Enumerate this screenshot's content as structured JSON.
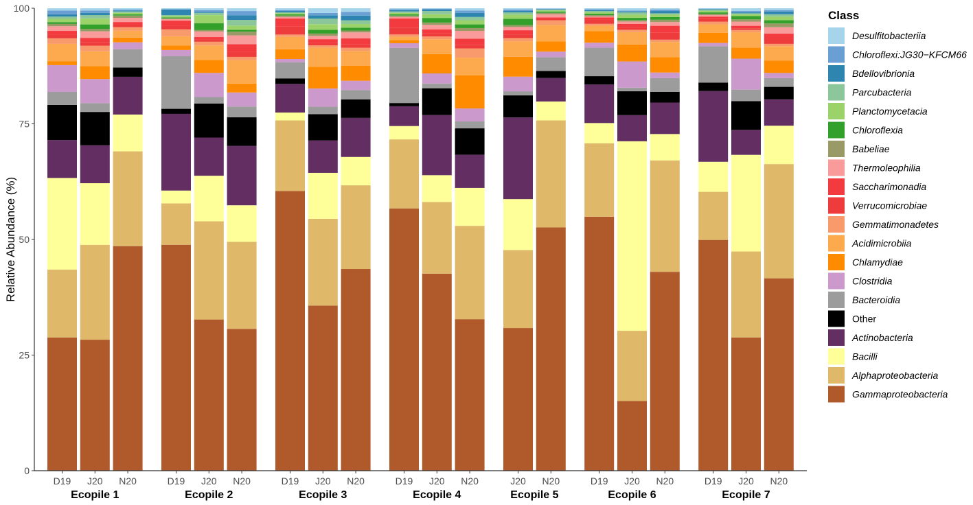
{
  "chart_data": {
    "type": "bar",
    "stacked": true,
    "ylabel": "Relative Abundance (%)",
    "ylim": [
      0,
      100
    ],
    "yticks": [
      0,
      25,
      50,
      75,
      100
    ],
    "legend_title": "Class",
    "classes": [
      {
        "name": "Gammaproteobacteria",
        "color": "#b05a2b",
        "italic": true
      },
      {
        "name": "Alphaproteobacteria",
        "color": "#dfb86a",
        "italic": true
      },
      {
        "name": "Bacilli",
        "color": "#ffff99",
        "italic": true
      },
      {
        "name": "Actinobacteria",
        "color": "#632f63",
        "italic": true
      },
      {
        "name": "Other",
        "color": "#000000",
        "italic": false
      },
      {
        "name": "Bacteroidia",
        "color": "#9c9c9c",
        "italic": true
      },
      {
        "name": "Clostridia",
        "color": "#cc99cc",
        "italic": true
      },
      {
        "name": "Chlamydiae",
        "color": "#ff8c00",
        "italic": true
      },
      {
        "name": "Acidimicrobiia",
        "color": "#fda94e",
        "italic": true
      },
      {
        "name": "Gemmatimonadetes",
        "color": "#f99a6c",
        "italic": true
      },
      {
        "name": "Verrucomicrobiae",
        "color": "#ee3b3b",
        "italic": true
      },
      {
        "name": "Saccharimonadia",
        "color": "#f33a3e",
        "italic": true
      },
      {
        "name": "Thermoleophilia",
        "color": "#fa9b9b",
        "italic": true
      },
      {
        "name": "Babeliae",
        "color": "#9a9a66",
        "italic": true
      },
      {
        "name": "Chloroflexia",
        "color": "#33a02c",
        "italic": true
      },
      {
        "name": "Planctomycetacia",
        "color": "#9bd36a",
        "italic": true
      },
      {
        "name": "Parcubacteria",
        "color": "#8cc69b",
        "italic": true
      },
      {
        "name": "Bdellovibrionia",
        "color": "#2e86b0",
        "italic": true
      },
      {
        "name": "Chloroflexi:JG30−KFCM66",
        "color": "#6a9fd3",
        "italic": true
      },
      {
        "name": "Desulfitobacteriia",
        "color": "#a6d4ea",
        "italic": true
      }
    ],
    "groups": [
      {
        "name": "Ecopile 1",
        "samples": [
          {
            "label": "D19",
            "values": [
              28.8,
              14.7,
              19.8,
              8.2,
              7.6,
              2.8,
              5.8,
              0.8,
              3.8,
              1.2,
              0.8,
              0.8,
              1.0,
              0.5,
              0.4,
              0.7,
              0.5,
              0.5,
              0.8,
              0.5
            ]
          },
          {
            "label": "J20",
            "values": [
              28.3,
              20.5,
              13.3,
              8.2,
              7.2,
              1.9,
              5.2,
              2.8,
              3.2,
              1.2,
              0.8,
              0.9,
              1.4,
              0.5,
              1.0,
              1.3,
              0.7,
              0.5,
              0.5,
              0.5
            ]
          },
          {
            "label": "N20",
            "values": [
              48.8,
              20.6,
              8.0,
              8.2,
              2.0,
              4.0,
              1.5,
              1.0,
              1.5,
              0.8,
              0.6,
              0.5,
              0.9,
              0.5,
              0.3,
              0.3,
              0.3,
              0.2,
              0.2,
              0.3
            ]
          }
        ]
      },
      {
        "name": "Ecopile 2",
        "samples": [
          {
            "label": "D19",
            "values": [
              49.2,
              9.0,
              2.8,
              16.7,
              1.1,
              11.5,
              1.3,
              1.0,
              2.0,
              1.5,
              0.8,
              1.1,
              0.3,
              0.2,
              0.2,
              0.3,
              0.2,
              1.2,
              0.1,
              0.2
            ]
          },
          {
            "label": "J20",
            "values": [
              32.5,
              21.1,
              9.8,
              8.2,
              7.3,
              1.4,
              5.2,
              2.8,
              3.1,
              0.8,
              0.5,
              0.5,
              1.2,
              0.3,
              1.5,
              1.7,
              0.5,
              0.2,
              0.4,
              0.4
            ]
          },
          {
            "label": "N20",
            "values": [
              30.3,
              18.6,
              7.8,
              12.7,
              6.1,
              2.3,
              3.0,
              1.9,
              5.0,
              0.7,
              1.1,
              1.6,
              1.9,
              0.8,
              0.4,
              0.9,
              1.2,
              1.0,
              0.9,
              0.6
            ]
          }
        ]
      },
      {
        "name": "Ecopile 3",
        "samples": [
          {
            "label": "D19",
            "values": [
              60.6,
              15.3,
              1.7,
              6.2,
              1.2,
              3.5,
              0.7,
              2.1,
              2.7,
              0.5,
              1.8,
              1.7,
              0.3,
              0.3,
              0.3,
              0.2,
              0.2,
              0.3,
              0.2,
              0.4
            ]
          },
          {
            "label": "J20",
            "values": [
              35.2,
              18.5,
              9.8,
              6.9,
              5.6,
              1.6,
              3.9,
              4.6,
              4.1,
              0.5,
              0.5,
              0.8,
              0.7,
              0.5,
              0.8,
              1.2,
              1.2,
              0.7,
              0.5,
              1.0
            ]
          },
          {
            "label": "N20",
            "values": [
              43.4,
              18.0,
              6.1,
              8.4,
              4.0,
              2.0,
              2.0,
              3.2,
              3.2,
              0.7,
              0.7,
              1.3,
              1.3,
              0.4,
              0.6,
              0.8,
              0.8,
              1.0,
              0.8,
              0.8
            ]
          }
        ]
      },
      {
        "name": "Ecopile 4",
        "samples": [
          {
            "label": "D19",
            "values": [
              57.0,
              15.0,
              2.9,
              4.3,
              0.7,
              12.0,
              1.0,
              0.7,
              0.7,
              0.5,
              1.5,
              2.0,
              0.3,
              0.3,
              0.3,
              0.3,
              0.3,
              0.3,
              0.2,
              0.2
            ]
          },
          {
            "label": "J20",
            "values": [
              42.6,
              15.5,
              5.8,
              13.0,
              5.8,
              1.0,
              2.2,
              4.2,
              3.2,
              0.6,
              0.7,
              0.8,
              1.0,
              0.5,
              1.0,
              0.8,
              0.7,
              0.3,
              0.2,
              0.1
            ]
          },
          {
            "label": "N20",
            "values": [
              32.8,
              20.2,
              8.2,
              7.2,
              5.7,
              1.5,
              2.8,
              7.2,
              3.8,
              2.0,
              0.8,
              1.3,
              1.7,
              0.6,
              0.8,
              0.9,
              0.7,
              0.9,
              0.5,
              0.5
            ]
          }
        ]
      },
      {
        "name": "Ecopile 5",
        "samples": [
          {
            "label": "J20",
            "values": [
              31.1,
              17.0,
              11.1,
              17.8,
              4.8,
              0.9,
              3.2,
              4.3,
              3.4,
              0.7,
              0.8,
              0.9,
              0.7,
              0.4,
              1.4,
              0.9,
              0.5,
              0.3,
              0.3,
              0.3
            ]
          },
          {
            "label": "N20",
            "values": [
              52.7,
              23.2,
              4.1,
              5.1,
              1.5,
              3.0,
              1.2,
              2.2,
              3.6,
              1.0,
              0.3,
              0.3,
              0.7,
              0.3,
              0.3,
              0.2,
              0.2,
              0.1,
              0.1,
              0.1
            ]
          }
        ]
      },
      {
        "name": "Ecopile 6",
        "samples": [
          {
            "label": "D19",
            "values": [
              55.3,
              16.0,
              4.4,
              8.4,
              1.8,
              6.2,
              1.1,
              2.5,
              1.2,
              0.4,
              1.0,
              0.4,
              0.2,
              0.3,
              0.3,
              0.3,
              0.3,
              0.2,
              0.2,
              0.2
            ]
          },
          {
            "label": "J20",
            "values": [
              15.2,
              15.3,
              41.3,
              5.7,
              5.2,
              0.8,
              5.7,
              3.7,
              2.7,
              0.5,
              0.5,
              0.8,
              0.5,
              0.3,
              0.5,
              0.7,
              0.5,
              0.2,
              0.2,
              0.5
            ]
          },
          {
            "label": "N20",
            "values": [
              43.0,
              24.1,
              5.7,
              6.8,
              2.3,
              3.0,
              1.2,
              3.3,
              3.3,
              0.5,
              1.5,
              1.5,
              0.8,
              0.5,
              0.6,
              0.5,
              0.3,
              0.5,
              0.3,
              0.3
            ]
          }
        ]
      },
      {
        "name": "Ecopile 7",
        "samples": [
          {
            "label": "D19",
            "values": [
              49.9,
              10.4,
              6.5,
              15.3,
              1.8,
              7.9,
              0.7,
              2.2,
              1.8,
              0.6,
              0.7,
              0.4,
              0.3,
              0.3,
              0.3,
              0.3,
              0.3,
              0.1,
              0.1,
              0.1
            ]
          },
          {
            "label": "J20",
            "values": [
              28.8,
              18.6,
              20.9,
              5.4,
              6.2,
              2.5,
              6.7,
              2.4,
              3.3,
              0.5,
              0.3,
              0.6,
              0.9,
              0.5,
              0.7,
              0.4,
              0.2,
              0.2,
              0.3,
              0.6
            ]
          },
          {
            "label": "N20",
            "values": [
              41.6,
              24.7,
              8.3,
              5.7,
              2.7,
              1.9,
              1.1,
              2.7,
              3.1,
              0.5,
              1.1,
              1.1,
              1.4,
              0.8,
              0.7,
              0.8,
              0.5,
              0.6,
              0.3,
              0.4
            ]
          }
        ]
      }
    ]
  }
}
